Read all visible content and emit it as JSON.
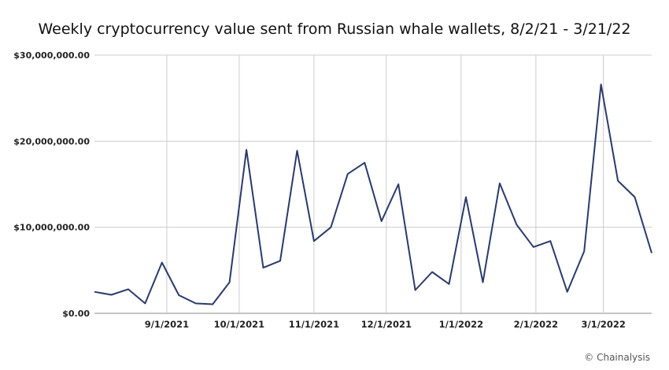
{
  "chart_data": {
    "type": "line",
    "title": "Weekly cryptocurrency value sent from Russian whale wallets, 8/2/21 - 3/21/22",
    "xlabel": "",
    "ylabel": "",
    "ylim": [
      0,
      30000000
    ],
    "yticks": [
      {
        "value": 0,
        "label": "$0.00"
      },
      {
        "value": 10000000,
        "label": "$10,000,000.00"
      },
      {
        "value": 20000000,
        "label": "$20,000,000.00"
      },
      {
        "value": 30000000,
        "label": "$30,000,000.00"
      }
    ],
    "xlim": [
      "2021-08-02",
      "2022-03-21"
    ],
    "xticks": [
      {
        "date": "2021-09-01",
        "label": "9/1/2021"
      },
      {
        "date": "2021-10-01",
        "label": "10/1/2021"
      },
      {
        "date": "2021-11-01",
        "label": "11/1/2021"
      },
      {
        "date": "2021-12-01",
        "label": "12/1/2021"
      },
      {
        "date": "2022-01-01",
        "label": "1/1/2022"
      },
      {
        "date": "2022-02-01",
        "label": "2/1/2022"
      },
      {
        "date": "2022-03-01",
        "label": "3/1/2022"
      }
    ],
    "grid": {
      "vertical": true,
      "horizontal": true
    },
    "line_color": "#2b3a6b",
    "series": [
      {
        "x": [
          "2021-08-02",
          "2021-08-09",
          "2021-08-16",
          "2021-08-23",
          "2021-08-30",
          "2021-09-06",
          "2021-09-13",
          "2021-09-20",
          "2021-09-27",
          "2021-10-04",
          "2021-10-11",
          "2021-10-18",
          "2021-10-25",
          "2021-11-01",
          "2021-11-08",
          "2021-11-15",
          "2021-11-22",
          "2021-11-29",
          "2021-12-06",
          "2021-12-13",
          "2021-12-20",
          "2021-12-27",
          "2022-01-03",
          "2022-01-10",
          "2022-01-17",
          "2022-01-24",
          "2022-01-31",
          "2022-02-07",
          "2022-02-14",
          "2022-02-21",
          "2022-02-28",
          "2022-03-07",
          "2022-03-14",
          "2022-03-21"
        ],
        "values": [
          2500000,
          2150000,
          2800000,
          1150000,
          5900000,
          2100000,
          1150000,
          1050000,
          3600000,
          19000000,
          5300000,
          6100000,
          18900000,
          8400000,
          10000000,
          16200000,
          17500000,
          10700000,
          15000000,
          2700000,
          4800000,
          3400000,
          13500000,
          3600000,
          15100000,
          10300000,
          7700000,
          8400000,
          2500000,
          7200000,
          26600000,
          15400000,
          13500000,
          7000000
        ]
      }
    ]
  },
  "source": "© Chainalysis"
}
